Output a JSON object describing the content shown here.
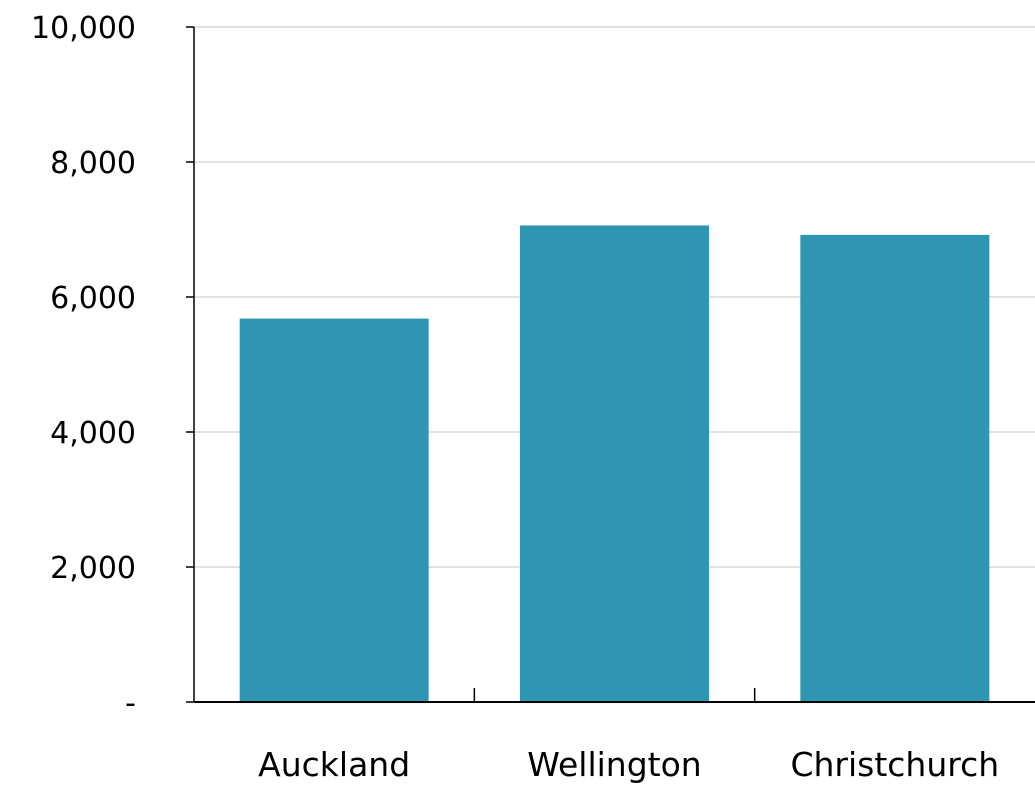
{
  "chart_data": {
    "type": "bar",
    "categories": [
      "Auckland",
      "Wellington",
      "Christchurch"
    ],
    "values": [
      5680,
      7060,
      6920
    ],
    "yticks": [
      {
        "value": 0,
        "label": "-"
      },
      {
        "value": 2000,
        "label": "2,000"
      },
      {
        "value": 4000,
        "label": "4,000"
      },
      {
        "value": 6000,
        "label": "6,000"
      },
      {
        "value": 8000,
        "label": "8,000"
      },
      {
        "value": 10000,
        "label": "10,000"
      }
    ],
    "ylim": [
      0,
      10000
    ],
    "grid": true,
    "bar_color": "#2e96b3",
    "grid_color": "#d9d9d9",
    "axis_color": "#000000"
  }
}
